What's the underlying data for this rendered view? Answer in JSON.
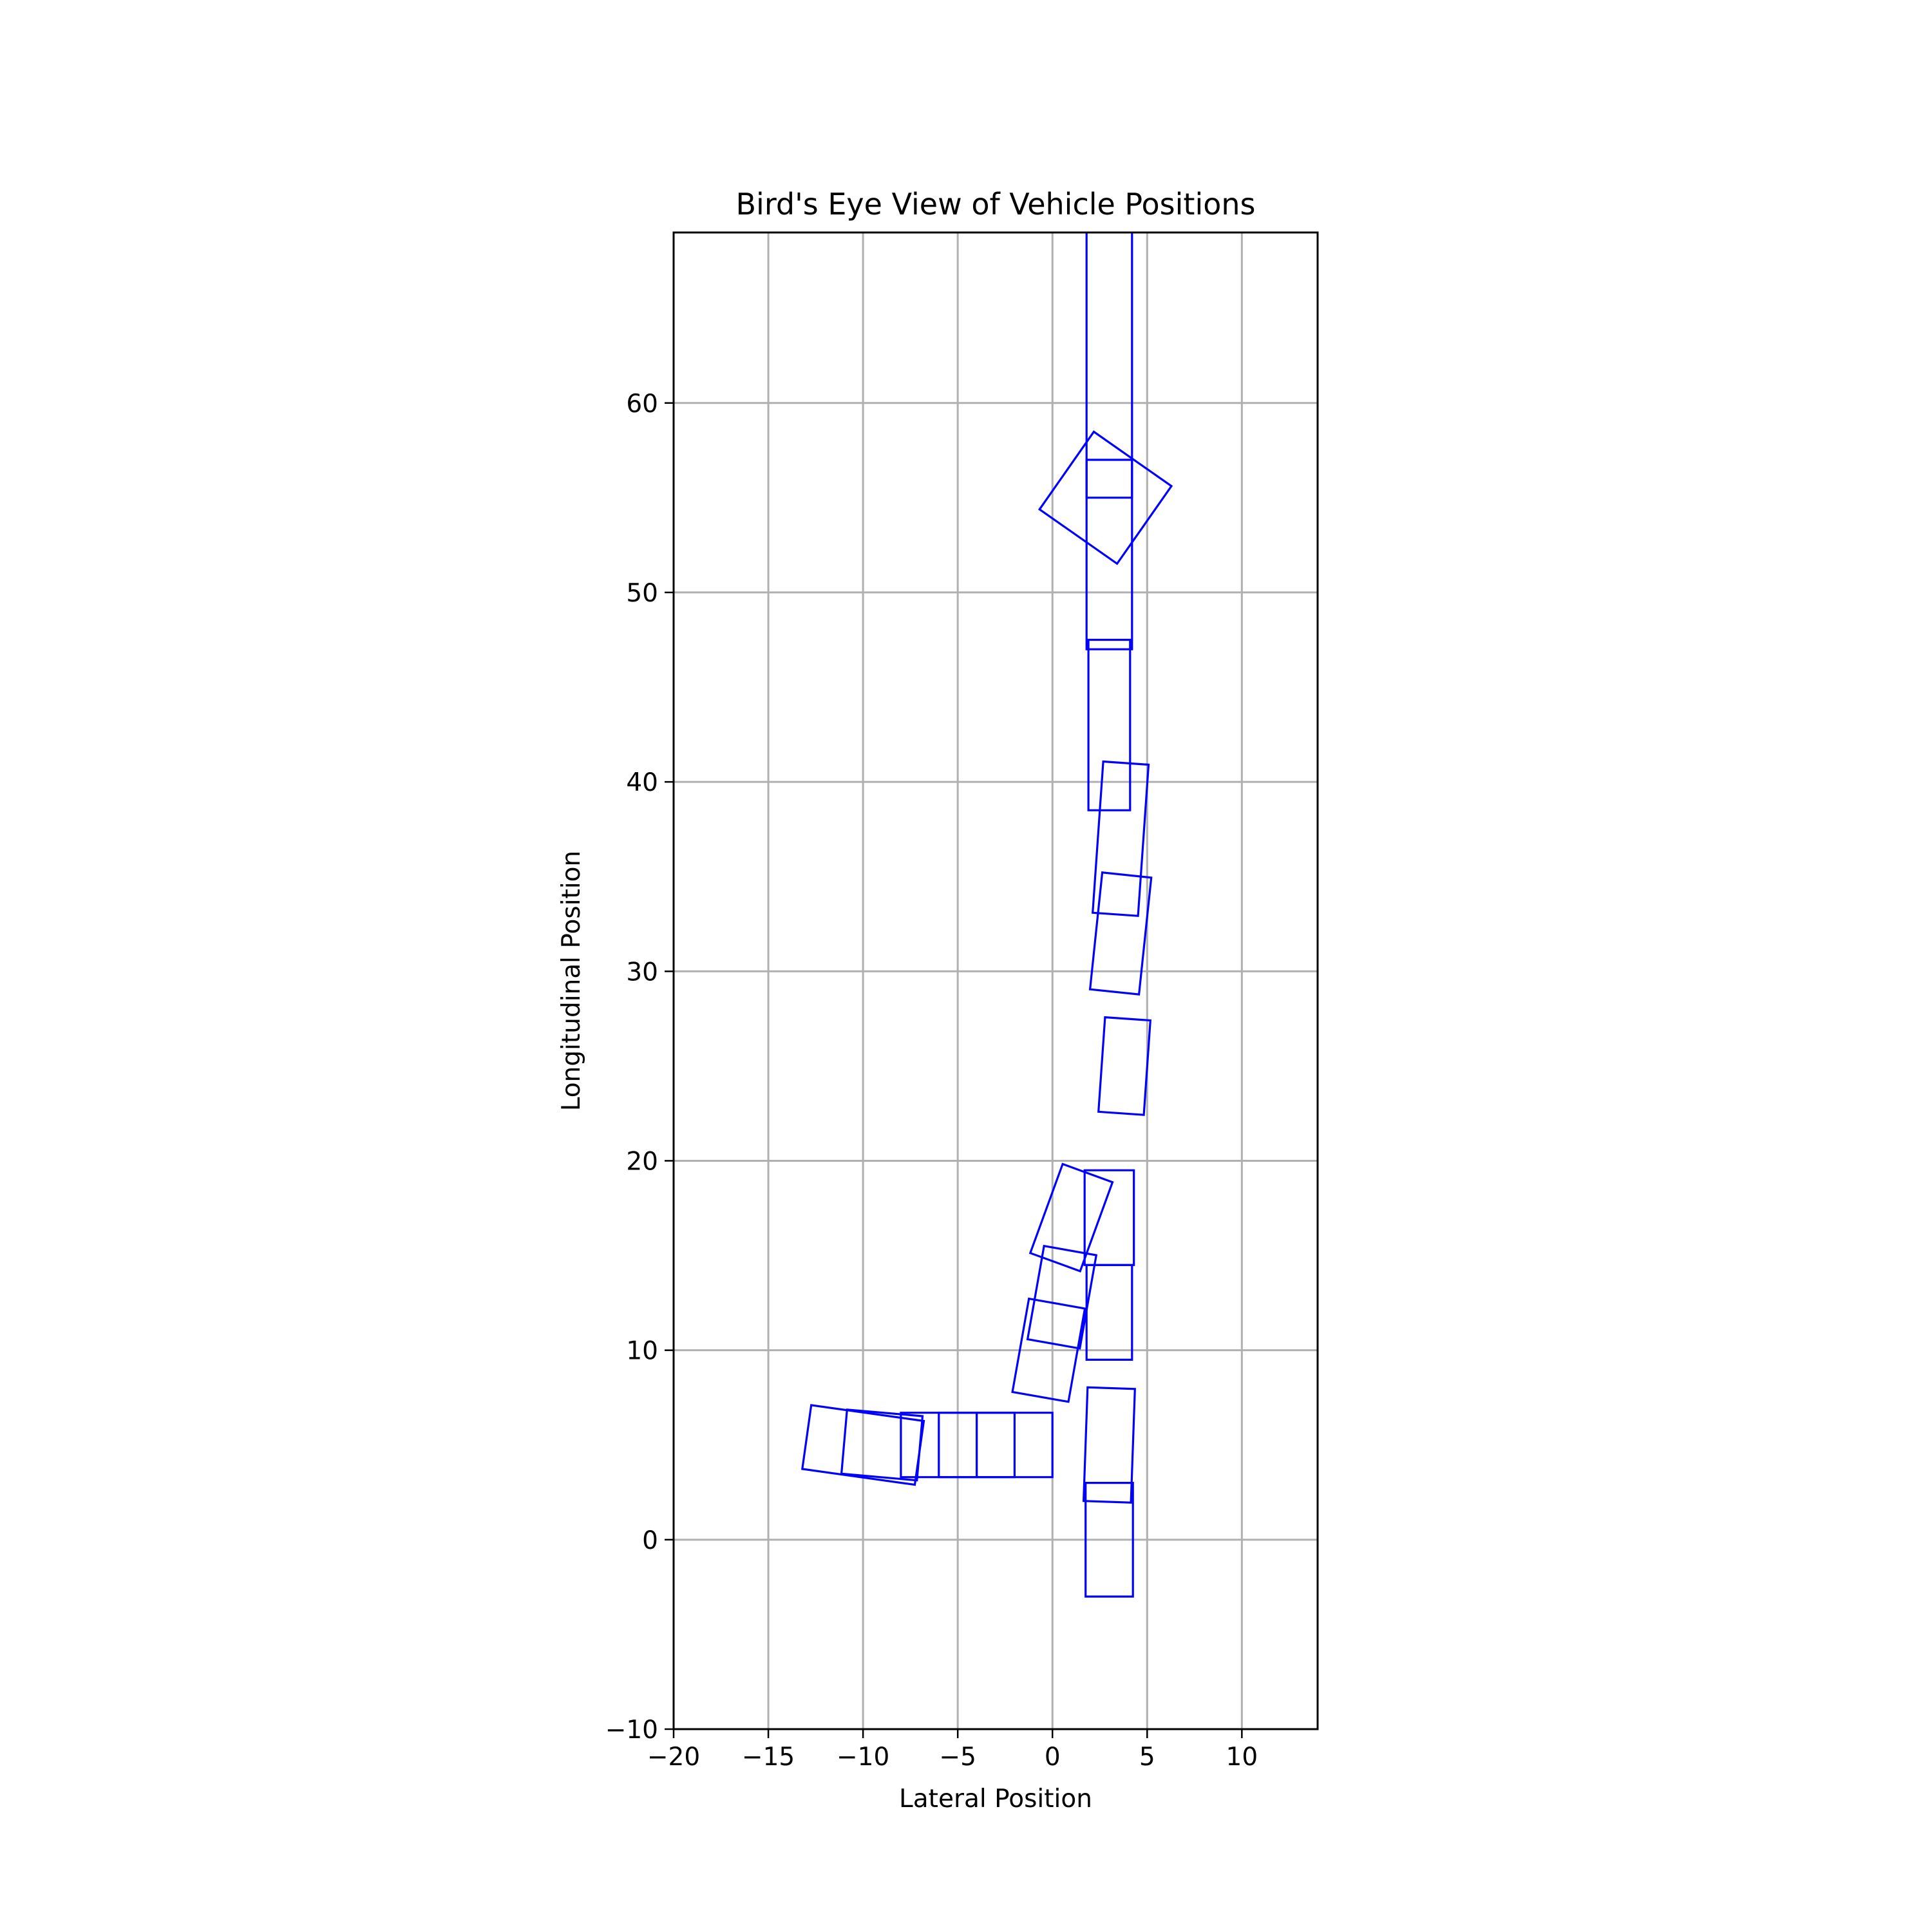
{
  "chart_data": {
    "type": "scatter",
    "title": "Bird's Eye View of Vehicle Positions",
    "xlabel": "Lateral Position",
    "ylabel": "Longitudinal Position",
    "xlim": [
      -20,
      14
    ],
    "ylim": [
      -10,
      69
    ],
    "xticks": [
      -20,
      -15,
      -10,
      -5,
      0,
      5,
      10
    ],
    "yticks": [
      -10,
      0,
      10,
      20,
      30,
      40,
      50,
      60
    ],
    "xtick_labels": [
      "−20",
      "−15",
      "−10",
      "−5",
      "0",
      "5",
      "10"
    ],
    "ytick_labels": [
      "−10",
      "0",
      "10",
      "20",
      "30",
      "40",
      "50",
      "60"
    ],
    "grid": true,
    "box_color": "#0000ff",
    "vehicles": [
      {
        "x": 3.0,
        "y": 145.0,
        "length": 180.0,
        "width": 2.4,
        "heading_deg": 90
      },
      {
        "x": 3.0,
        "y": 52.0,
        "length": 10.0,
        "width": 2.4,
        "heading_deg": 90
      },
      {
        "x": 2.8,
        "y": 55.0,
        "length": 5.0,
        "width": 5.0,
        "heading_deg": 145
      },
      {
        "x": 3.0,
        "y": 43.0,
        "length": 9.0,
        "width": 2.2,
        "heading_deg": 90
      },
      {
        "x": 3.6,
        "y": 37.0,
        "length": 8.0,
        "width": 2.4,
        "heading_deg": 86
      },
      {
        "x": 3.6,
        "y": 32.0,
        "length": 6.2,
        "width": 2.6,
        "heading_deg": 84
      },
      {
        "x": 3.8,
        "y": 25.0,
        "length": 5.0,
        "width": 2.4,
        "heading_deg": 86
      },
      {
        "x": 3.0,
        "y": 17.0,
        "length": 5.0,
        "width": 2.6,
        "heading_deg": 90
      },
      {
        "x": 3.0,
        "y": 12.0,
        "length": 5.0,
        "width": 2.4,
        "heading_deg": 90
      },
      {
        "x": 1.0,
        "y": 17.0,
        "length": 5.0,
        "width": 2.8,
        "heading_deg": 70
      },
      {
        "x": 0.5,
        "y": 12.8,
        "length": 5.0,
        "width": 2.8,
        "heading_deg": 80
      },
      {
        "x": -0.2,
        "y": 10.0,
        "length": 5.0,
        "width": 3.0,
        "heading_deg": 80
      },
      {
        "x": 3.0,
        "y": 5.0,
        "length": 6.0,
        "width": 2.5,
        "heading_deg": 88
      },
      {
        "x": 3.0,
        "y": 0.0,
        "length": 6.0,
        "width": 2.5,
        "heading_deg": 90
      },
      {
        "x": -2.0,
        "y": 5.0,
        "length": 4.0,
        "width": 3.4,
        "heading_deg": 0
      },
      {
        "x": -4.0,
        "y": 5.0,
        "length": 4.0,
        "width": 3.4,
        "heading_deg": 0
      },
      {
        "x": -6.0,
        "y": 5.0,
        "length": 4.0,
        "width": 3.4,
        "heading_deg": 0
      },
      {
        "x": -9.0,
        "y": 5.0,
        "length": 4.0,
        "width": 3.4,
        "heading_deg": -5
      },
      {
        "x": -10.0,
        "y": 5.0,
        "length": 6.0,
        "width": 3.4,
        "heading_deg": -8
      }
    ]
  }
}
